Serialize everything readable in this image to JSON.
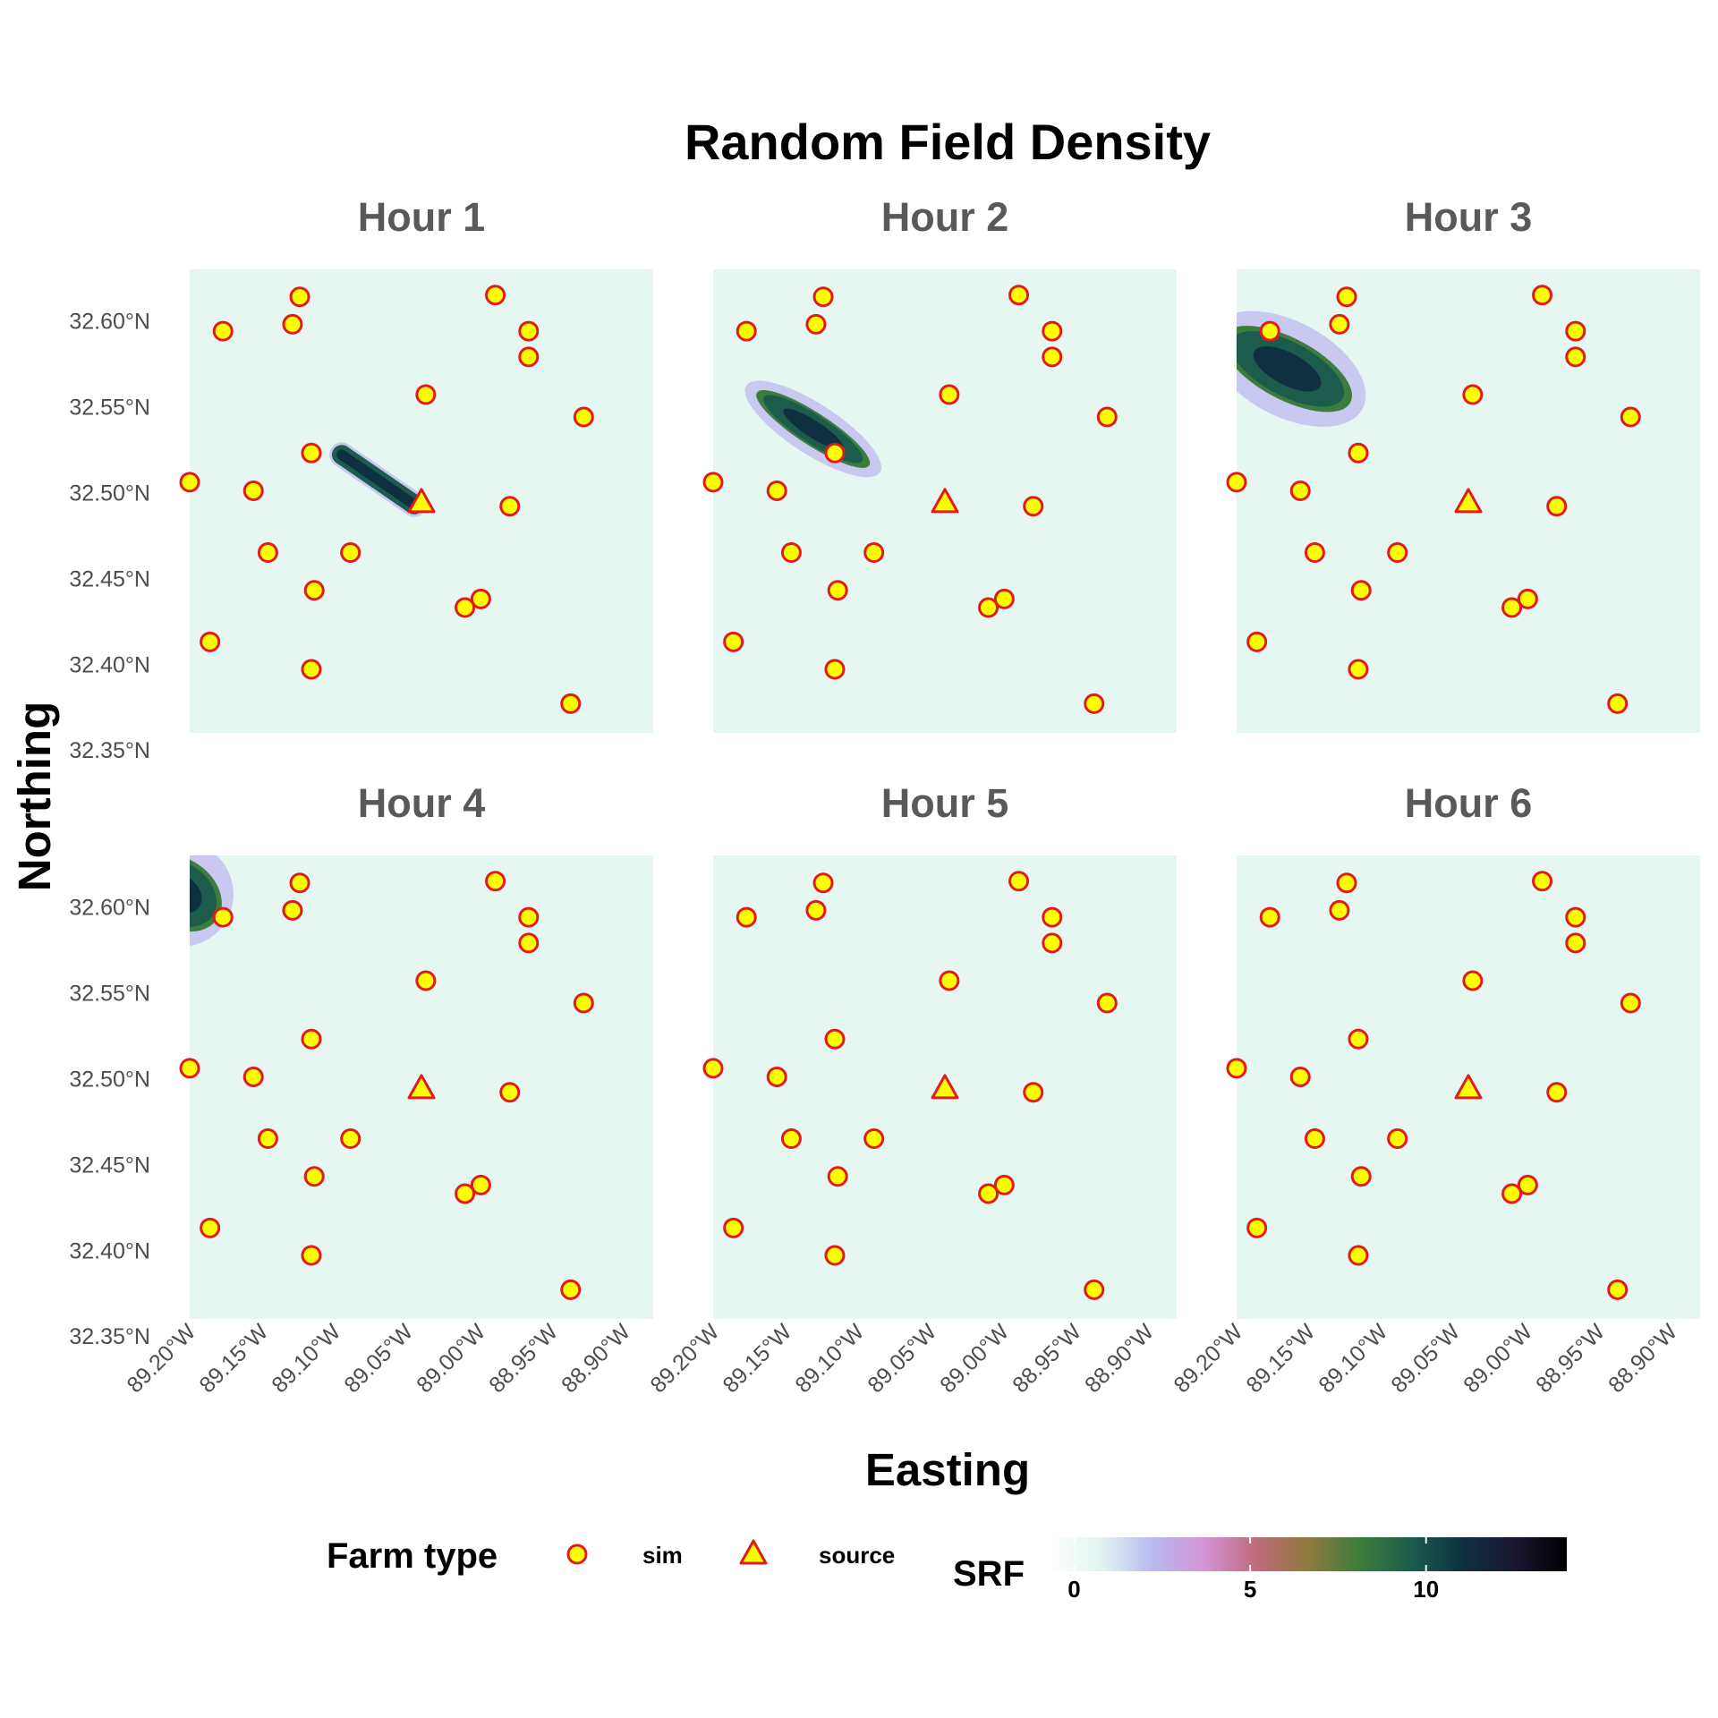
{
  "chart_data": {
    "type": "scatter",
    "title": "Random Field Density",
    "xlabel": "Easting",
    "ylabel": "Northing",
    "x_ticks": [
      "89.20°W",
      "89.15°W",
      "89.10°W",
      "89.05°W",
      "89.00°W",
      "88.95°W",
      "88.90°W"
    ],
    "x_tick_values": [
      -89.2,
      -89.15,
      -89.1,
      -89.05,
      -89.0,
      -88.95,
      -88.9
    ],
    "y_ticks": [
      "32.35°N",
      "32.40°N",
      "32.45°N",
      "32.50°N",
      "32.55°N",
      "32.60°N"
    ],
    "y_tick_values": [
      32.35,
      32.4,
      32.45,
      32.5,
      32.55,
      32.6
    ],
    "xlim": [
      -89.2,
      -88.88
    ],
    "ylim": [
      32.36,
      32.63
    ],
    "background": "#e6f6f1",
    "facets": [
      {
        "label": "Hour 1",
        "field": {
          "shape": "streak",
          "from": [
            -89.095,
            32.522
          ],
          "to": [
            -89.045,
            32.493
          ],
          "half_width": 0.006,
          "peak": 12
        }
      },
      {
        "label": "Hour 2",
        "field": {
          "shape": "ellipse",
          "center": [
            -89.131,
            32.537
          ],
          "rx": 0.044,
          "ry": 0.009,
          "rotation_deg": 33,
          "peak": 11
        }
      },
      {
        "label": "Hour 3",
        "field": {
          "shape": "ellipse",
          "center": [
            -89.165,
            32.572
          ],
          "rx": 0.047,
          "ry": 0.017,
          "rotation_deg": 28,
          "peak": 11
        }
      },
      {
        "label": "Hour 4",
        "field": {
          "shape": "ellipse",
          "center": [
            -89.207,
            32.608
          ],
          "rx": 0.03,
          "ry": 0.019,
          "rotation_deg": 35,
          "peak": 11
        }
      },
      {
        "label": "Hour 5",
        "field": null
      },
      {
        "label": "Hour 6",
        "field": null
      }
    ],
    "series": [
      {
        "name": "sim",
        "marker": "circle",
        "fill": "#ffff00",
        "stroke": "#e31a1c",
        "points": [
          [
            -89.2,
            32.506
          ],
          [
            -89.177,
            32.594
          ],
          [
            -89.186,
            32.413
          ],
          [
            -89.156,
            32.501
          ],
          [
            -89.146,
            32.465
          ],
          [
            -89.129,
            32.598
          ],
          [
            -89.124,
            32.614
          ],
          [
            -89.116,
            32.523
          ],
          [
            -89.114,
            32.443
          ],
          [
            -89.116,
            32.397
          ],
          [
            -89.089,
            32.465
          ],
          [
            -89.037,
            32.557
          ],
          [
            -89.01,
            32.433
          ],
          [
            -88.999,
            32.438
          ],
          [
            -88.989,
            32.615
          ],
          [
            -88.979,
            32.492
          ],
          [
            -88.966,
            32.594
          ],
          [
            -88.966,
            32.579
          ],
          [
            -88.937,
            32.377
          ],
          [
            -88.928,
            32.544
          ]
        ]
      },
      {
        "name": "source",
        "marker": "triangle",
        "fill": "#ffff00",
        "stroke": "#e31a1c",
        "points": [
          [
            -89.04,
            32.494
          ]
        ]
      }
    ],
    "legend": {
      "position": "bottom",
      "farm_title": "Farm type",
      "farm_items": [
        {
          "marker": "circle",
          "label": "sim"
        },
        {
          "marker": "triangle",
          "label": "source"
        }
      ],
      "colorbar_title": "SRF",
      "colorbar_ticks": [
        "0",
        "5",
        "10"
      ],
      "colorbar_tick_values": [
        0,
        5,
        10
      ],
      "colorbar_range": [
        -0.7,
        14
      ],
      "colorbar_colors": [
        "#ffffff",
        "#e2f4f0",
        "#b9b9ee",
        "#d494d4",
        "#c06a7c",
        "#8e7a3c",
        "#3c7c3c",
        "#1b5c4c",
        "#0e3040",
        "#1a1530",
        "#000000"
      ]
    }
  }
}
